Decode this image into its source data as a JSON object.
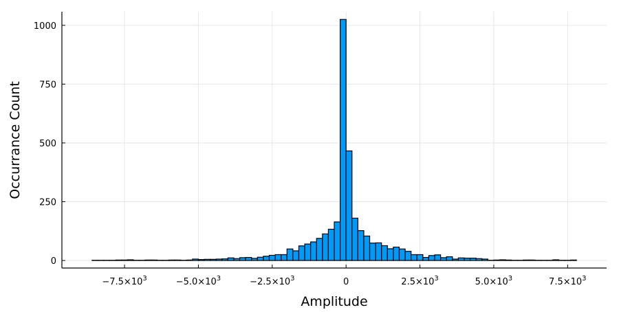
{
  "chart_data": {
    "type": "bar",
    "subtype": "histogram",
    "xlabel": "Amplitude",
    "ylabel": "Occurrance Count",
    "xlim": [
      -9620,
      8820
    ],
    "ylim": [
      -32,
      1058
    ],
    "bin_width": 200,
    "bin_start": -8600,
    "counts": [
      1,
      1,
      1,
      1,
      2,
      2,
      3,
      1,
      1,
      2,
      2,
      1,
      1,
      2,
      2,
      1,
      2,
      6,
      4,
      5,
      5,
      6,
      7,
      11,
      8,
      12,
      13,
      9,
      14,
      18,
      22,
      25,
      25,
      49,
      41,
      62,
      70,
      79,
      94,
      113,
      133,
      164,
      1025,
      466,
      180,
      127,
      104,
      74,
      75,
      63,
      50,
      57,
      49,
      39,
      25,
      25,
      13,
      21,
      24,
      12,
      16,
      6,
      11,
      10,
      10,
      8,
      6,
      1,
      2,
      3,
      2,
      1,
      1,
      2,
      2,
      1,
      1,
      1,
      3,
      1,
      1,
      2
    ],
    "x_ticks": [
      {
        "value": -7500,
        "mantissa": "−7.5",
        "base": "×10",
        "exp": "3"
      },
      {
        "value": -5000,
        "mantissa": "−5.0",
        "base": "×10",
        "exp": "3"
      },
      {
        "value": -2500,
        "mantissa": "−2.5",
        "base": "×10",
        "exp": "3"
      },
      {
        "value": 0,
        "mantissa": "0",
        "base": "",
        "exp": ""
      },
      {
        "value": 2500,
        "mantissa": "2.5",
        "base": "×10",
        "exp": "3"
      },
      {
        "value": 5000,
        "mantissa": "5.0",
        "base": "×10",
        "exp": "3"
      },
      {
        "value": 7500,
        "mantissa": "7.5",
        "base": "×10",
        "exp": "3"
      }
    ],
    "y_ticks": [
      0,
      250,
      500,
      750,
      1000
    ],
    "grid": true,
    "legend": "none",
    "colors": {
      "bar_fill": "#009af9",
      "bar_stroke": "#000000",
      "grid": "#e6e6e6"
    }
  }
}
